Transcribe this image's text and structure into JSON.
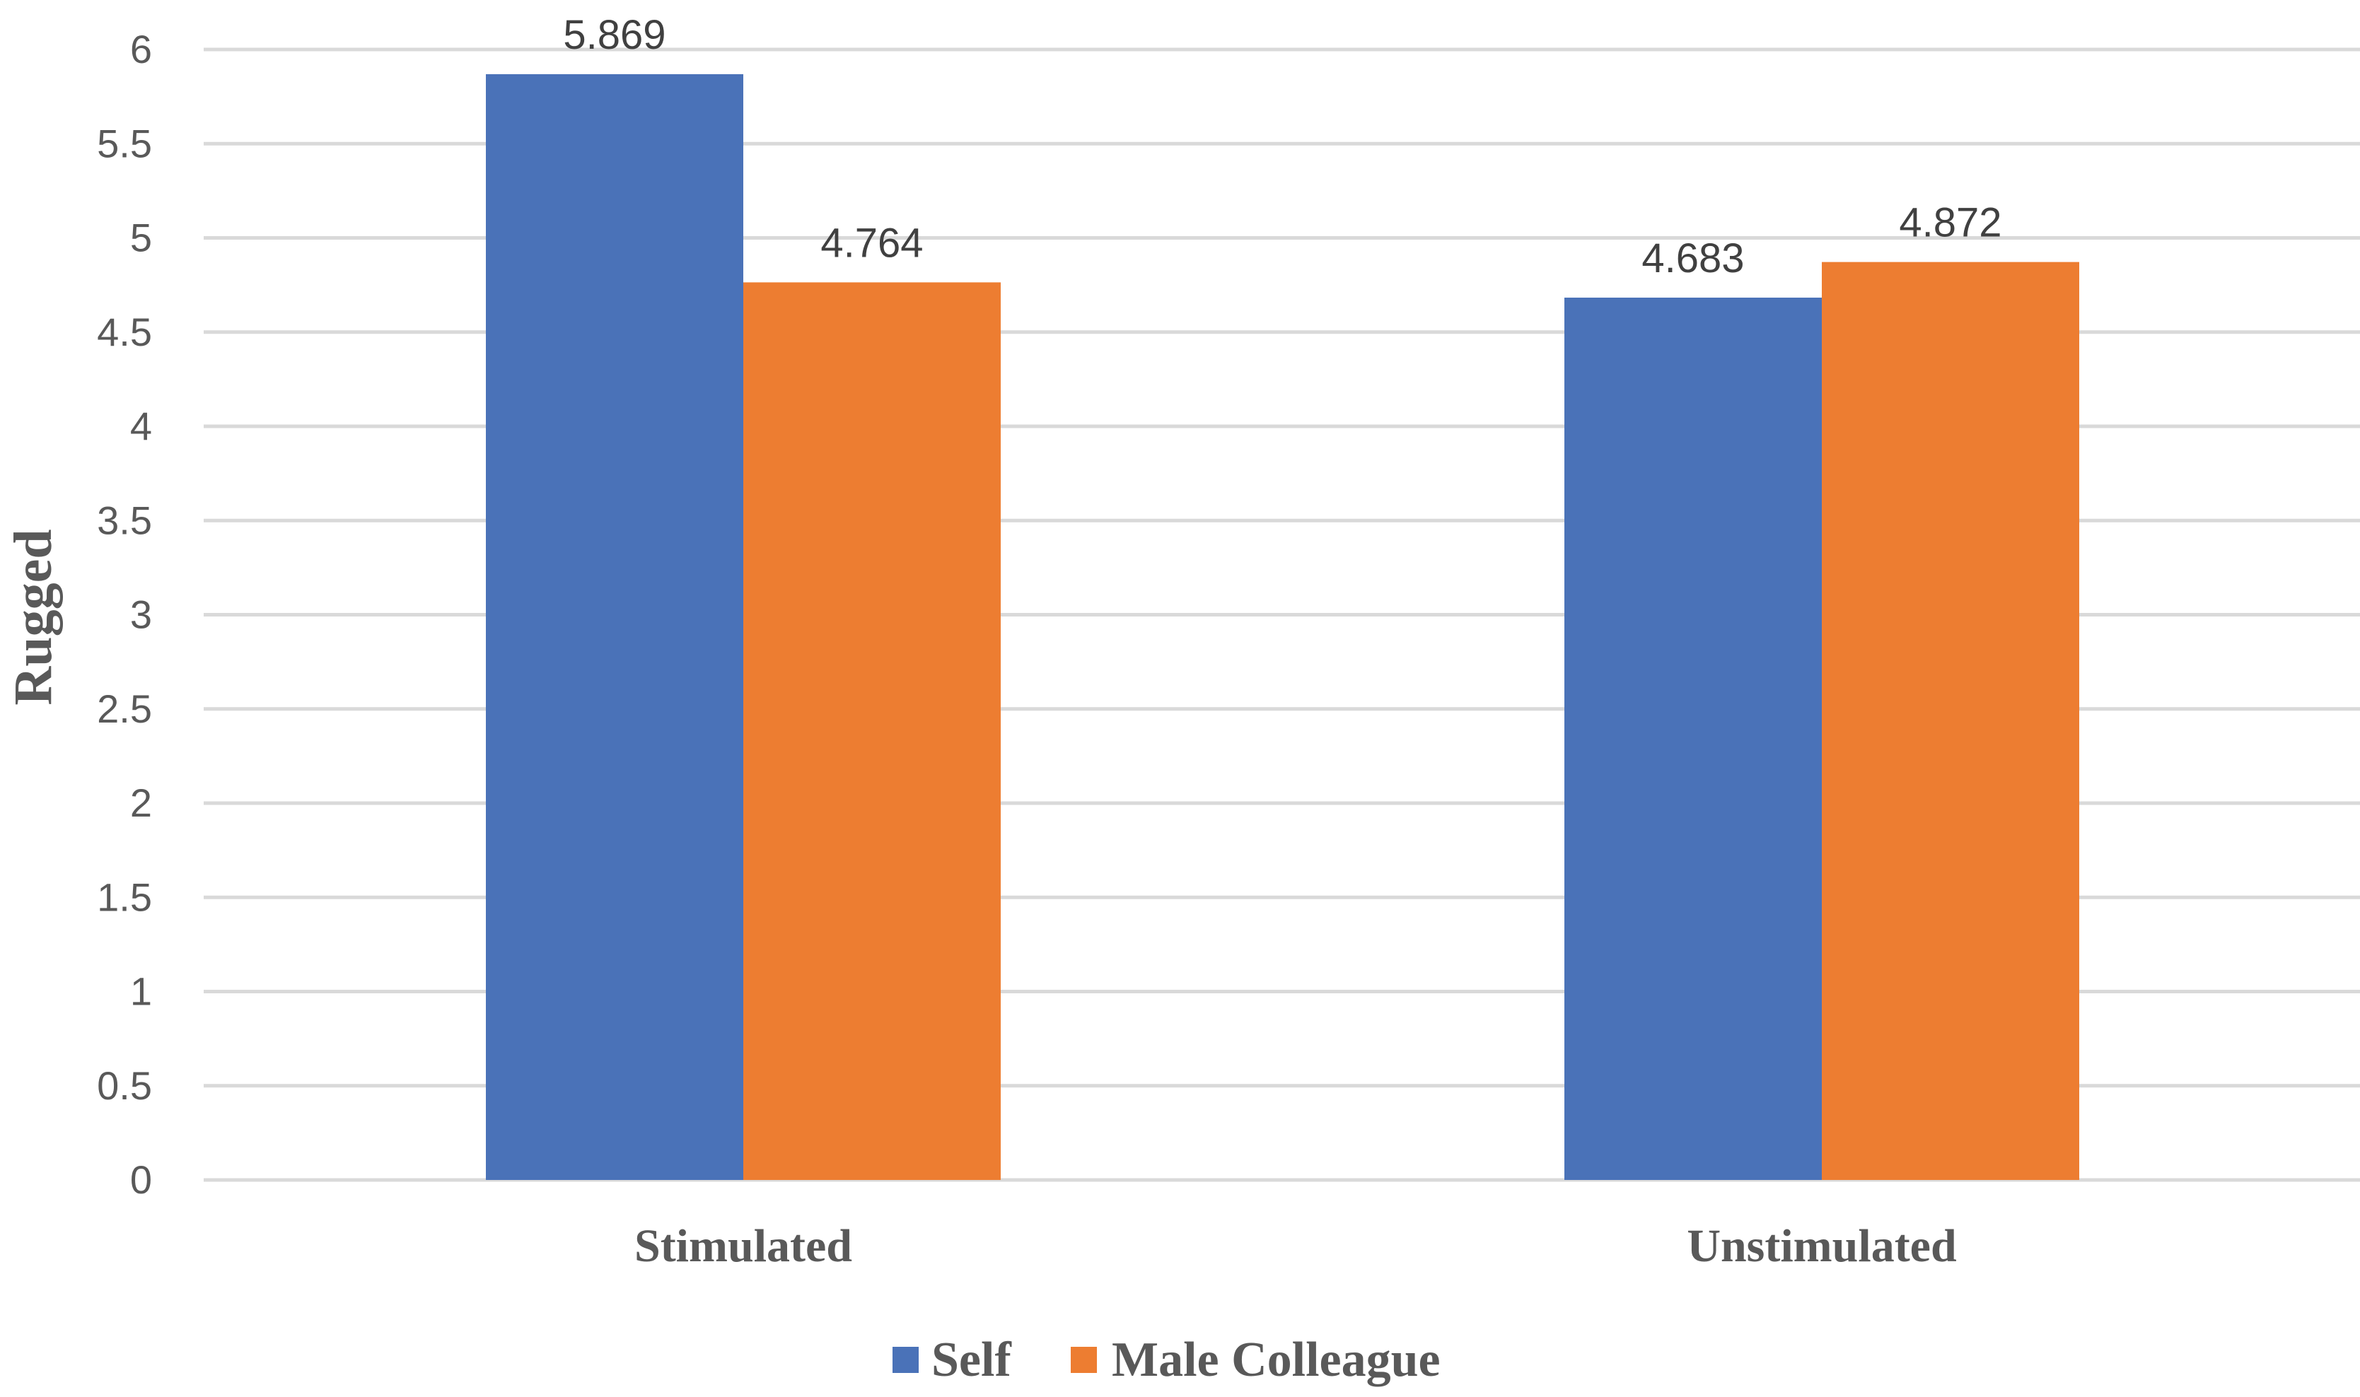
{
  "chart_data": {
    "type": "bar",
    "title": "",
    "xlabel": "",
    "ylabel": "Rugged",
    "categories": [
      "Stimulated",
      "Unstimulated"
    ],
    "series": [
      {
        "name": "Self",
        "color": "#4A72B8",
        "values": [
          5.869,
          4.683
        ]
      },
      {
        "name": "Male Colleague",
        "color": "#ED7D31",
        "values": [
          4.764,
          4.872
        ]
      }
    ],
    "ylim": [
      0,
      6
    ],
    "yticks": [
      "0",
      "0.5",
      "1",
      "1.5",
      "2",
      "2.5",
      "3",
      "3.5",
      "4",
      "4.5",
      "5",
      "5.5",
      "6"
    ],
    "data_labels": [
      [
        "5.869",
        "4.683"
      ],
      [
        "4.764",
        "4.872"
      ]
    ],
    "grid": true,
    "legend_position": "bottom"
  }
}
